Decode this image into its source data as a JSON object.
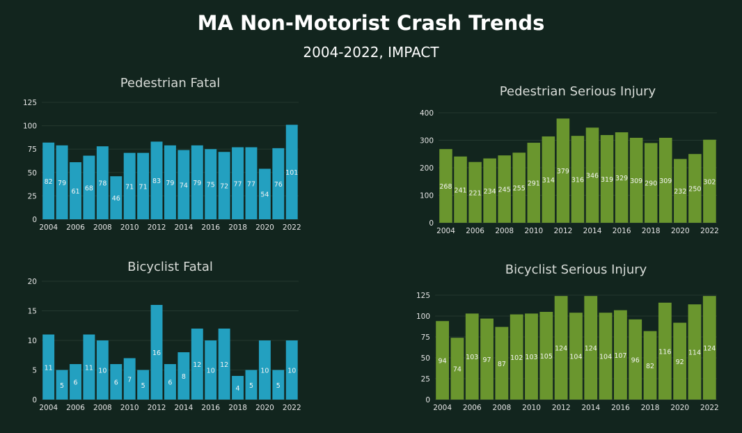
{
  "header": {
    "title": "MA Non-Motorist Crash Trends",
    "subtitle": "2004-2022, IMPACT"
  },
  "colors": {
    "background": "#12251e",
    "pedestrian_fatal": "#23a0c0",
    "bicyclist_fatal": "#23a0c0",
    "serious_injury": "#6a962e"
  },
  "chart_data": [
    {
      "type": "bar",
      "title": "Pedestrian Fatal",
      "xlabel": "",
      "ylabel": "",
      "categories": [
        "2004",
        "2005",
        "2006",
        "2007",
        "2008",
        "2009",
        "2010",
        "2011",
        "2012",
        "2013",
        "2014",
        "2015",
        "2016",
        "2017",
        "2018",
        "2019",
        "2020",
        "2021",
        "2022"
      ],
      "x_tick_labels": [
        "2004",
        "2006",
        "2008",
        "2010",
        "2012",
        "2014",
        "2016",
        "2018",
        "2020",
        "2022"
      ],
      "values": [
        82,
        79,
        61,
        68,
        78,
        46,
        71,
        71,
        83,
        79,
        74,
        79,
        75,
        72,
        77,
        77,
        54,
        76,
        101
      ],
      "ylim": [
        0,
        125
      ],
      "y_ticks": [
        0,
        25,
        50,
        75,
        100,
        125
      ],
      "grid": true,
      "color": "#23a0c0"
    },
    {
      "type": "bar",
      "title": "Pedestrian Serious Injury",
      "xlabel": "",
      "ylabel": "",
      "categories": [
        "2004",
        "2005",
        "2006",
        "2007",
        "2008",
        "2009",
        "2010",
        "2011",
        "2012",
        "2013",
        "2014",
        "2015",
        "2016",
        "2017",
        "2018",
        "2019",
        "2020",
        "2021",
        "2022"
      ],
      "x_tick_labels": [
        "2004",
        "2006",
        "2008",
        "2010",
        "2012",
        "2014",
        "2016",
        "2018",
        "2020",
        "2022"
      ],
      "values": [
        268,
        241,
        221,
        234,
        245,
        255,
        291,
        314,
        379,
        316,
        346,
        319,
        329,
        309,
        290,
        309,
        232,
        250,
        302
      ],
      "ylim": [
        0,
        400
      ],
      "y_ticks": [
        0,
        100,
        200,
        300,
        400
      ],
      "grid": true,
      "color": "#6a962e"
    },
    {
      "type": "bar",
      "title": "Bicyclist Fatal",
      "xlabel": "",
      "ylabel": "",
      "categories": [
        "2004",
        "2005",
        "2006",
        "2007",
        "2008",
        "2009",
        "2010",
        "2011",
        "2012",
        "2013",
        "2014",
        "2015",
        "2016",
        "2017",
        "2018",
        "2019",
        "2020",
        "2021",
        "2022"
      ],
      "x_tick_labels": [
        "2004",
        "2006",
        "2008",
        "2010",
        "2012",
        "2014",
        "2016",
        "2018",
        "2020",
        "2022"
      ],
      "values": [
        11,
        5,
        6,
        11,
        10,
        6,
        7,
        5,
        16,
        6,
        8,
        12,
        10,
        12,
        4,
        5,
        10,
        5,
        10
      ],
      "ylim": [
        0,
        20
      ],
      "y_ticks": [
        0,
        5,
        10,
        15,
        20
      ],
      "grid": true,
      "color": "#23a0c0"
    },
    {
      "type": "bar",
      "title": "Bicyclist Serious Injury",
      "xlabel": "",
      "ylabel": "",
      "categories": [
        "2004",
        "2005",
        "2006",
        "2007",
        "2008",
        "2009",
        "2010",
        "2011",
        "2012",
        "2013",
        "2014",
        "2015",
        "2016",
        "2017",
        "2018",
        "2019",
        "2020",
        "2021",
        "2022"
      ],
      "x_tick_labels": [
        "2004",
        "2006",
        "2008",
        "2010",
        "2012",
        "2014",
        "2016",
        "2018",
        "2020",
        "2022"
      ],
      "values": [
        94,
        74,
        103,
        97,
        87,
        102,
        103,
        105,
        124,
        104,
        124,
        104,
        107,
        96,
        82,
        116,
        92,
        114,
        124
      ],
      "ylim": [
        0,
        125
      ],
      "y_ticks": [
        0,
        25,
        50,
        75,
        100,
        125
      ],
      "grid": true,
      "color": "#6a962e"
    }
  ]
}
